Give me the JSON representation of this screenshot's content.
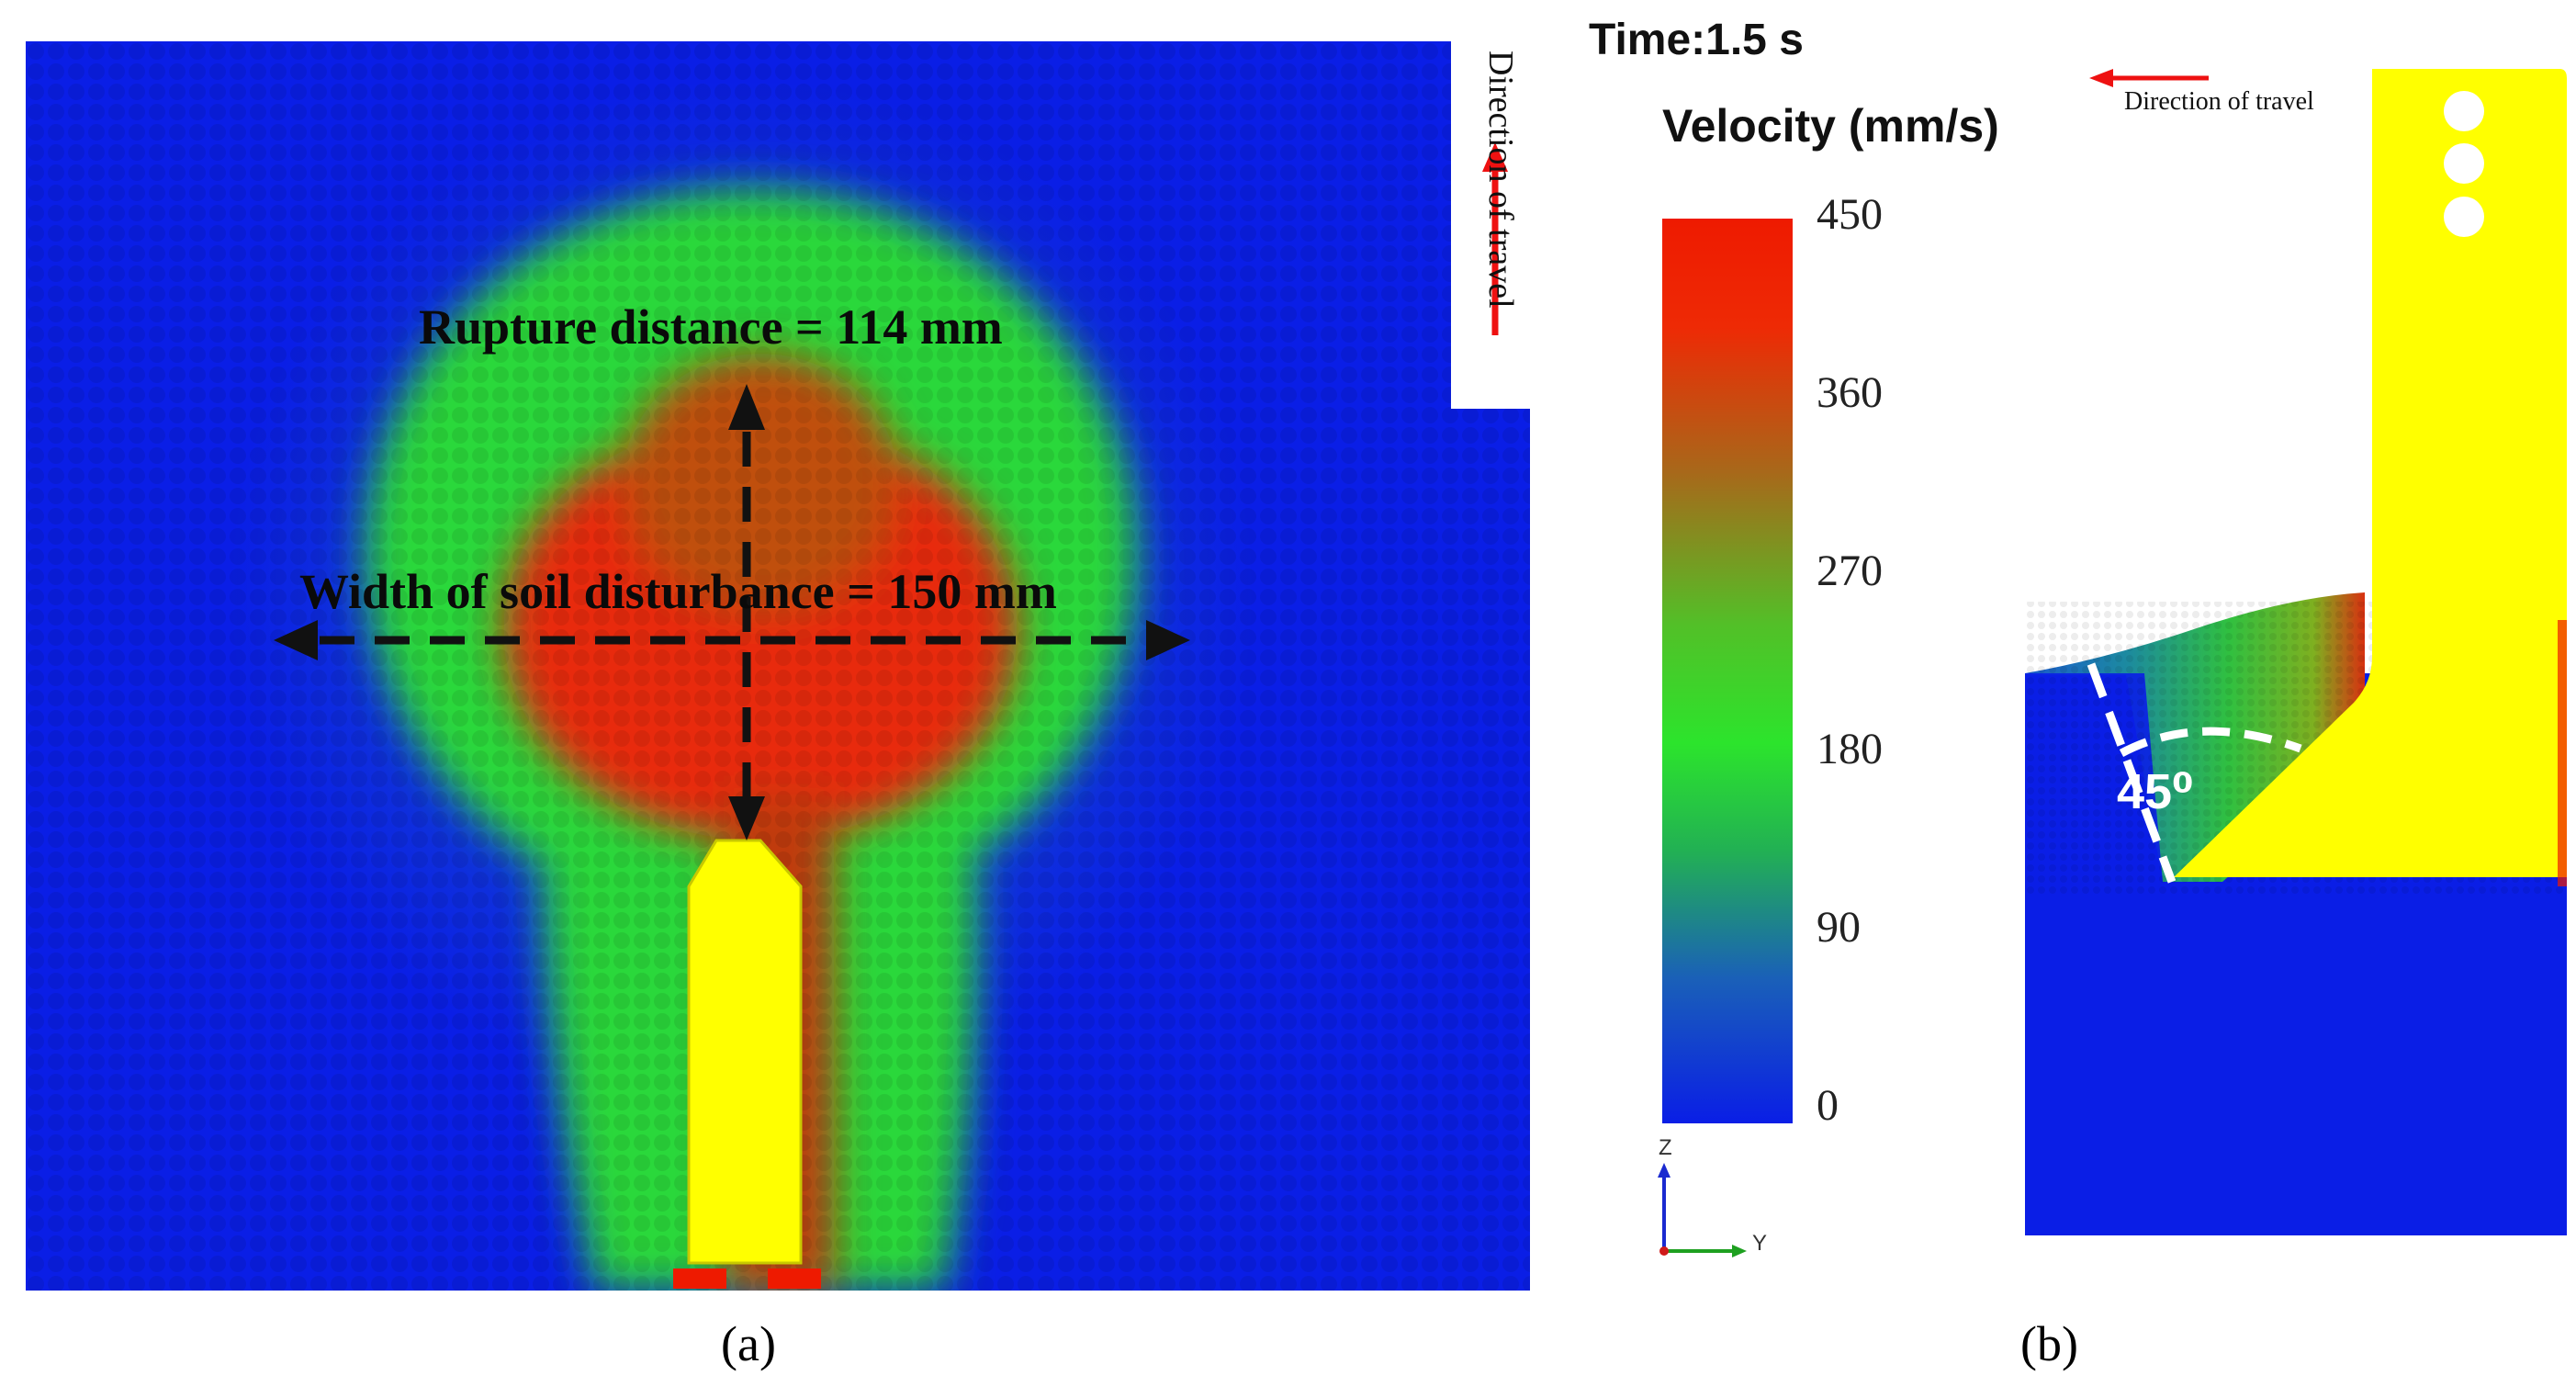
{
  "panel_a": {
    "caption": "(a)",
    "direction_label": "Direction of travel",
    "rupture_label": "Rupture distance = 114 mm",
    "width_label": "Width of soil disturbance = 150 mm"
  },
  "panel_b": {
    "caption": "(b)",
    "direction_label": "Direction of travel",
    "angle_label": "45⁰"
  },
  "legend": {
    "time_label": "Time:1.5 s",
    "title": "Velocity (mm/s)",
    "ticks": [
      "450",
      "360",
      "270",
      "180",
      "90",
      "0"
    ],
    "axes": {
      "z": "Z",
      "y": "Y"
    }
  },
  "colors": {
    "low": "#0a1ee6",
    "mid_low": "#1a80b0",
    "mid": "#22e022",
    "mid_high": "#86a818",
    "high": "#ee1a00",
    "tool": "#ffff00",
    "arrow": "#ee1111"
  }
}
